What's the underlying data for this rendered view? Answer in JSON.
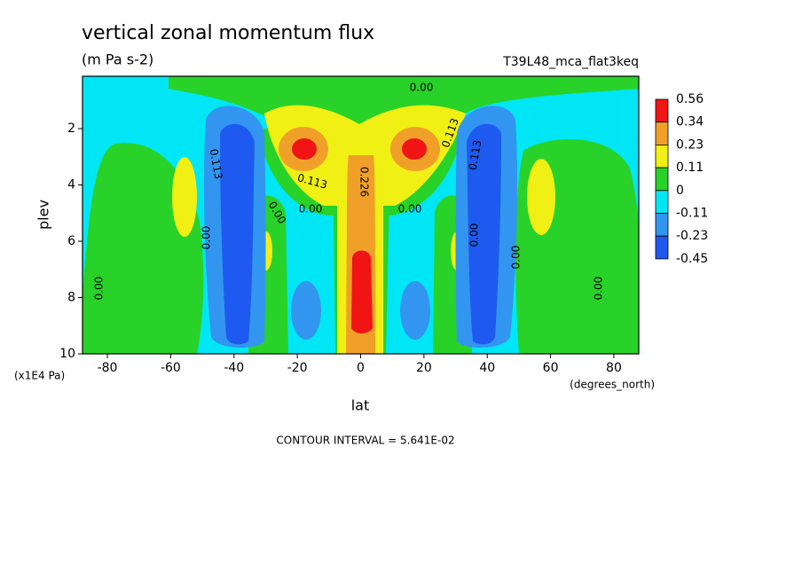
{
  "chart_data": {
    "type": "contour",
    "title": "vertical zonal momentum flux",
    "subtitle": "(m Pa s-2)",
    "run_label": "T39L48_mca_flat3keq",
    "x_label": "lat",
    "x_units": "(degrees_north)",
    "y_label": "plev",
    "y_units": "(x1E4 Pa)",
    "contour_interval_text": "CONTOUR INTERVAL = 5.641E-02",
    "xlim": [
      -87.86,
      87.86
    ],
    "xticks": [
      -80,
      -60,
      -40,
      -20,
      0,
      20,
      40,
      60,
      80
    ],
    "ylim": [
      10,
      0.14
    ],
    "yticks": [
      2,
      4,
      6,
      8,
      10
    ],
    "levels": [
      0.56,
      0.34,
      0.23,
      0.11,
      0,
      -0.11,
      -0.23,
      -0.45
    ],
    "colors": [
      "#f01414",
      "#f0a028",
      "#f0f014",
      "#28d228",
      "#00e6f5",
      "#3296f0",
      "#1e5af0"
    ],
    "contour_labels": [
      "0.00",
      "0.113",
      "0.00",
      "0.00",
      "0.113",
      "0.226",
      "0.00",
      "0.113",
      "0.113",
      "0.00",
      "0.00",
      "0.00",
      "0.00",
      "0.00"
    ]
  }
}
